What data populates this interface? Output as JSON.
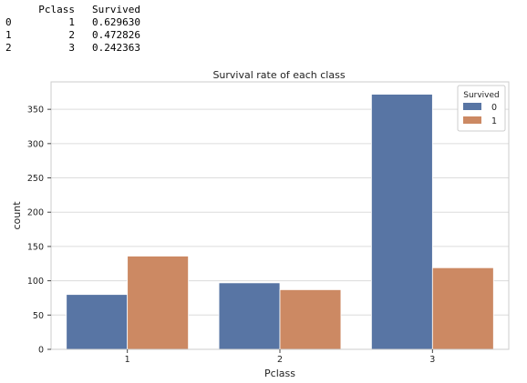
{
  "output_table": {
    "columns": [
      "",
      "Pclass",
      "Survived"
    ],
    "rows": [
      [
        "0",
        "1",
        "0.629630"
      ],
      [
        "1",
        "2",
        "0.472826"
      ],
      [
        "2",
        "3",
        "0.242363"
      ]
    ]
  },
  "chart_data": {
    "type": "bar",
    "title": "Survival rate of each class",
    "xlabel": "Pclass",
    "ylabel": "count",
    "categories": [
      "1",
      "2",
      "3"
    ],
    "ylim": [
      0,
      390
    ],
    "yticks": [
      0,
      50,
      100,
      150,
      200,
      250,
      300,
      350
    ],
    "grid": true,
    "legend": {
      "title": "Survived",
      "placement": "top-right"
    },
    "series": [
      {
        "name": "0",
        "values": [
          80,
          97,
          372
        ],
        "color": "#5875a4"
      },
      {
        "name": "1",
        "values": [
          136,
          87,
          119
        ],
        "color": "#cc8963"
      }
    ]
  }
}
